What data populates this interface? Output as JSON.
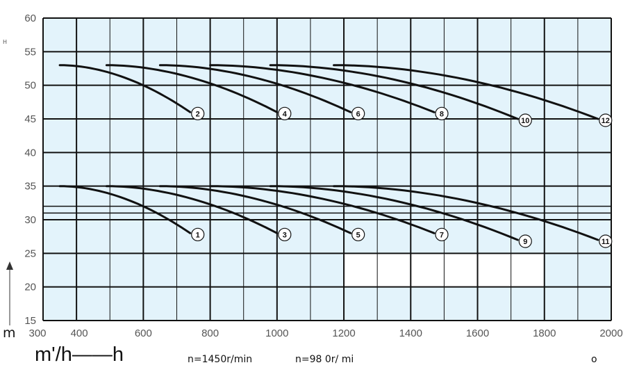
{
  "chart_data": {
    "type": "line",
    "title": "",
    "xlabel": "m'/h——h",
    "ylabel_top": "H",
    "ylabel_bottom": "m",
    "xlim": [
      300,
      2000
    ],
    "ylim": [
      15,
      60
    ],
    "x_ticks": [
      300,
      400,
      600,
      800,
      1000,
      1200,
      1400,
      1600,
      1800,
      2000
    ],
    "y_ticks": [
      15,
      20,
      25,
      30,
      35,
      40,
      45,
      50,
      55,
      60
    ],
    "grid": true,
    "grid_color": "#111111",
    "plot_background": "#e3f3fb",
    "blank_region": {
      "x": [
        1200,
        1800
      ],
      "y": [
        20,
        25
      ]
    },
    "extra_hlines": [
      31,
      32
    ],
    "notes": [
      "n=1450r/min",
      "n=98 0r/ mi"
    ],
    "corner_mark": "o",
    "series": [
      {
        "name": "1",
        "x": [
          350,
          740
        ],
        "y": [
          35,
          28
        ]
      },
      {
        "name": "2",
        "x": [
          350,
          740
        ],
        "y": [
          53,
          46
        ]
      },
      {
        "name": "3",
        "x": [
          490,
          1000
        ],
        "y": [
          35,
          28
        ]
      },
      {
        "name": "4",
        "x": [
          490,
          1000
        ],
        "y": [
          53,
          46
        ]
      },
      {
        "name": "5",
        "x": [
          650,
          1220
        ],
        "y": [
          35,
          28
        ]
      },
      {
        "name": "6",
        "x": [
          650,
          1220
        ],
        "y": [
          53,
          46
        ]
      },
      {
        "name": "7",
        "x": [
          800,
          1470
        ],
        "y": [
          35,
          28
        ]
      },
      {
        "name": "8",
        "x": [
          800,
          1470
        ],
        "y": [
          53,
          46
        ]
      },
      {
        "name": "9",
        "x": [
          980,
          1720
        ],
        "y": [
          35,
          27
        ]
      },
      {
        "name": "10",
        "x": [
          980,
          1720
        ],
        "y": [
          53,
          45
        ]
      },
      {
        "name": "11",
        "x": [
          1170,
          1960
        ],
        "y": [
          35,
          27
        ]
      },
      {
        "name": "12",
        "x": [
          1170,
          1960
        ],
        "y": [
          53,
          45
        ]
      }
    ]
  }
}
